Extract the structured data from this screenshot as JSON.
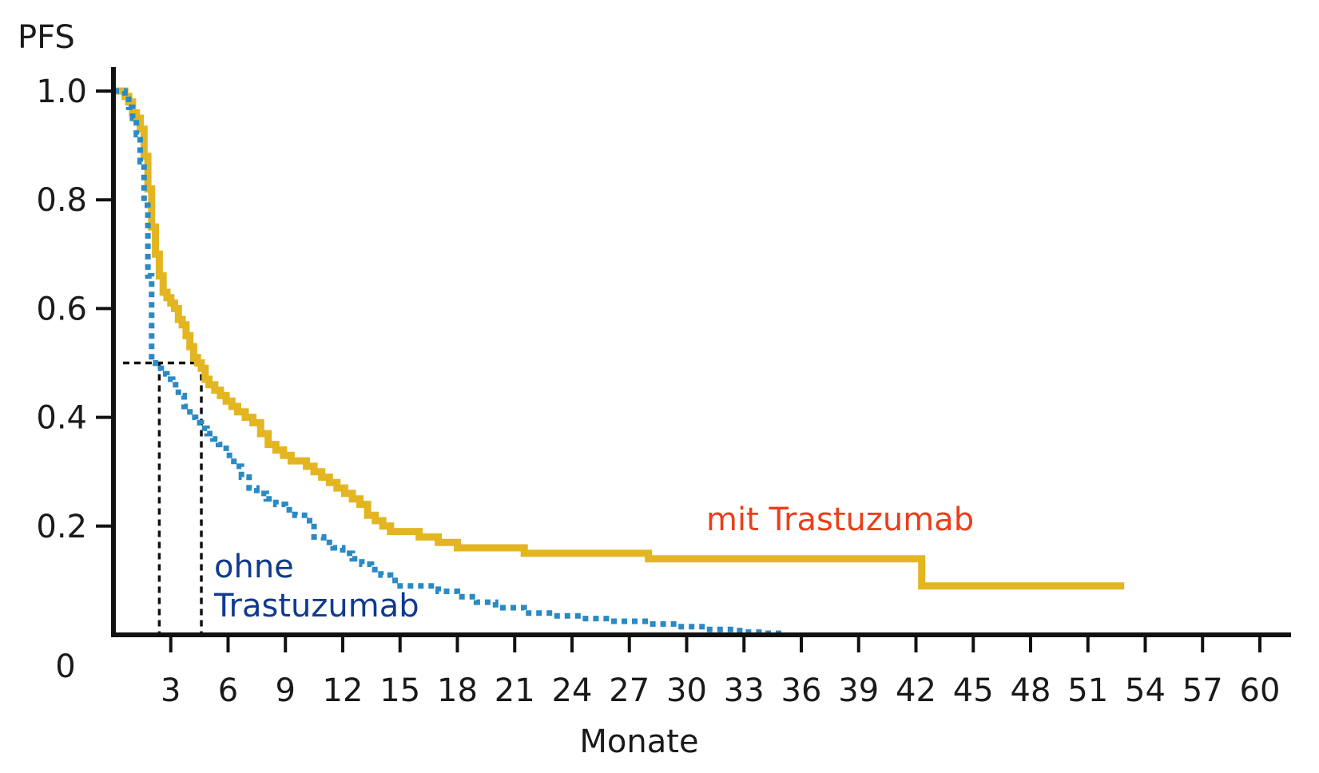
{
  "chart_data": {
    "type": "line",
    "step": true,
    "ylabel": "PFS",
    "xlabel": "Monate",
    "origin_label": "0",
    "xlim": [
      0,
      60
    ],
    "ylim": [
      0,
      1.0
    ],
    "x_ticks": [
      3,
      6,
      9,
      12,
      15,
      18,
      21,
      24,
      27,
      30,
      33,
      36,
      39,
      42,
      45,
      48,
      51,
      54,
      57,
      60
    ],
    "x_tick_labels": [
      "3",
      "6",
      "9",
      "12",
      "15",
      "18",
      "21",
      "24",
      "27",
      "30",
      "33",
      "36",
      "39",
      "42",
      "45",
      "48",
      "51",
      "54",
      "57",
      "60"
    ],
    "y_ticks": [
      0.2,
      0.4,
      0.6,
      0.8,
      1.0
    ],
    "y_tick_labels": [
      "0.2",
      "0.4",
      "0.6",
      "0.8",
      "1.0"
    ],
    "grid": false,
    "series": [
      {
        "name": "mit Trastuzumab",
        "label": "mit Trastuzumab",
        "color": "#e3b521",
        "label_color": "#e8401c",
        "style": "solid",
        "x": [
          0,
          0.6,
          0.8,
          1.0,
          1.2,
          1.4,
          1.6,
          1.8,
          2.0,
          2.2,
          2.4,
          2.6,
          2.8,
          3.0,
          3.2,
          3.4,
          3.6,
          3.8,
          4.0,
          4.2,
          4.4,
          4.6,
          4.8,
          5.0,
          5.3,
          5.6,
          5.9,
          6.2,
          6.5,
          6.9,
          7.3,
          7.7,
          8.1,
          8.5,
          8.9,
          9.3,
          9.7,
          10.1,
          10.5,
          10.9,
          11.3,
          11.7,
          12.1,
          12.5,
          12.9,
          13.3,
          13.7,
          14.1,
          14.5,
          15.0,
          16.0,
          17.0,
          18.0,
          19.0,
          20.0,
          21.5,
          23.0,
          25.0,
          27.0,
          28.0,
          30.0,
          33.0,
          36.0,
          39.0,
          41.0,
          42.3,
          43.0,
          46.0,
          50.0,
          52.9
        ],
        "y": [
          1.0,
          0.99,
          0.98,
          0.96,
          0.95,
          0.93,
          0.88,
          0.82,
          0.75,
          0.7,
          0.66,
          0.63,
          0.62,
          0.61,
          0.6,
          0.58,
          0.57,
          0.55,
          0.53,
          0.51,
          0.5,
          0.49,
          0.47,
          0.46,
          0.45,
          0.44,
          0.43,
          0.42,
          0.41,
          0.4,
          0.39,
          0.37,
          0.35,
          0.34,
          0.33,
          0.32,
          0.32,
          0.31,
          0.3,
          0.29,
          0.28,
          0.27,
          0.26,
          0.25,
          0.24,
          0.22,
          0.21,
          0.2,
          0.19,
          0.19,
          0.18,
          0.17,
          0.16,
          0.16,
          0.16,
          0.15,
          0.15,
          0.15,
          0.15,
          0.14,
          0.14,
          0.14,
          0.14,
          0.14,
          0.14,
          0.09,
          0.09,
          0.09,
          0.09,
          0.09
        ]
      },
      {
        "name": "ohne Trastuzumab",
        "label_lines": [
          "ohne",
          "Trastuzumab"
        ],
        "color": "#2a8ac4",
        "label_color": "#0f3a8f",
        "style": "dotted",
        "x": [
          0,
          0.6,
          0.8,
          1.0,
          1.2,
          1.4,
          1.6,
          1.8,
          2.0,
          2.2,
          2.5,
          2.8,
          3.1,
          3.4,
          3.7,
          4.0,
          4.3,
          4.6,
          4.9,
          5.2,
          5.5,
          5.9,
          6.3,
          6.7,
          7.1,
          7.5,
          8.0,
          8.5,
          9.0,
          9.5,
          10.0,
          10.5,
          11.0,
          11.5,
          12.0,
          12.5,
          13.0,
          13.5,
          14.0,
          14.5,
          15.0,
          16.0,
          17.0,
          18.0,
          19.0,
          20.0,
          21.5,
          23.0,
          24.5,
          26.0,
          28.0,
          29.5,
          31.0,
          32.5,
          33.0,
          34.0,
          35.0
        ],
        "y": [
          1.0,
          0.99,
          0.97,
          0.95,
          0.92,
          0.87,
          0.79,
          0.66,
          0.5,
          0.49,
          0.48,
          0.47,
          0.46,
          0.44,
          0.42,
          0.4,
          0.39,
          0.38,
          0.37,
          0.36,
          0.35,
          0.33,
          0.31,
          0.29,
          0.27,
          0.26,
          0.25,
          0.24,
          0.23,
          0.22,
          0.21,
          0.18,
          0.17,
          0.16,
          0.15,
          0.14,
          0.13,
          0.12,
          0.11,
          0.1,
          0.09,
          0.09,
          0.08,
          0.07,
          0.06,
          0.05,
          0.04,
          0.035,
          0.03,
          0.025,
          0.02,
          0.015,
          0.01,
          0.008,
          0.005,
          0.003,
          0.003
        ]
      }
    ],
    "median_markers": [
      {
        "series": "ohne Trastuzumab",
        "x": 2.4,
        "y": 0.5
      },
      {
        "series": "mit Trastuzumab",
        "x": 4.6,
        "y": 0.5
      }
    ],
    "axis_color": "#111111",
    "marker_color": "#111111"
  }
}
